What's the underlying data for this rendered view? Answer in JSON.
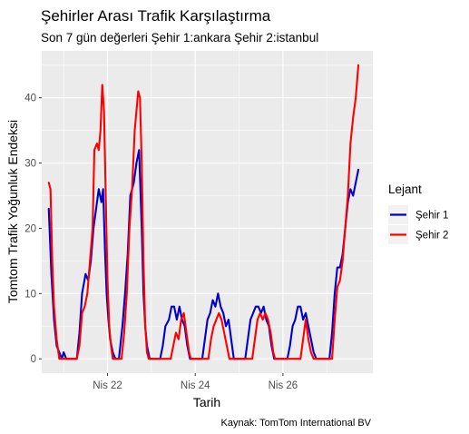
{
  "chart_data": {
    "type": "line",
    "title": "Şehirler Arası Trafik Karşılaştırma",
    "subtitle": "Son 7 gün değerleri Şehir 1:ankara Şehir 2:istanbul",
    "xlabel": "Tarih",
    "ylabel": "Tomtom Trafik Yoğunluk Endeksi",
    "caption": "Kaynak: TomTom International BV",
    "legend": {
      "title": "Lejant",
      "position": "right"
    },
    "xlim": [
      20.5,
      28.05
    ],
    "ylim": [
      -2.2,
      47.2
    ],
    "x_ticks": [
      {
        "value": 22,
        "label": "Nis 22"
      },
      {
        "value": 24,
        "label": "Nis 24"
      },
      {
        "value": 26,
        "label": "Nis 26"
      }
    ],
    "y_ticks": [
      0,
      10,
      20,
      30,
      40
    ],
    "grid": true,
    "series": [
      {
        "name": "Şehir 1",
        "color": "#0000CD",
        "points": [
          [
            20.66,
            23
          ],
          [
            20.72,
            13
          ],
          [
            20.78,
            6
          ],
          [
            20.84,
            2
          ],
          [
            20.9,
            1
          ],
          [
            20.96,
            0
          ],
          [
            21.0,
            1
          ],
          [
            21.06,
            0
          ],
          [
            21.3,
            0
          ],
          [
            21.36,
            4
          ],
          [
            21.42,
            10
          ],
          [
            21.5,
            13
          ],
          [
            21.56,
            12
          ],
          [
            21.62,
            15
          ],
          [
            21.68,
            20
          ],
          [
            21.74,
            23
          ],
          [
            21.8,
            26
          ],
          [
            21.86,
            24
          ],
          [
            21.9,
            26
          ],
          [
            21.94,
            17
          ],
          [
            21.98,
            10
          ],
          [
            22.02,
            6
          ],
          [
            22.06,
            3
          ],
          [
            22.12,
            1
          ],
          [
            22.18,
            0
          ],
          [
            22.26,
            0
          ],
          [
            22.34,
            5
          ],
          [
            22.4,
            10
          ],
          [
            22.46,
            16
          ],
          [
            22.52,
            25
          ],
          [
            22.6,
            27
          ],
          [
            22.66,
            30
          ],
          [
            22.72,
            32
          ],
          [
            22.78,
            20
          ],
          [
            22.82,
            10
          ],
          [
            22.86,
            5
          ],
          [
            22.9,
            2
          ],
          [
            22.96,
            0
          ],
          [
            23.2,
            0
          ],
          [
            23.26,
            2
          ],
          [
            23.32,
            5
          ],
          [
            23.4,
            6
          ],
          [
            23.46,
            8
          ],
          [
            23.52,
            8
          ],
          [
            23.58,
            6
          ],
          [
            23.64,
            8
          ],
          [
            23.7,
            6
          ],
          [
            23.76,
            5
          ],
          [
            23.82,
            2
          ],
          [
            23.88,
            0
          ],
          [
            24.16,
            0
          ],
          [
            24.22,
            3
          ],
          [
            24.28,
            6
          ],
          [
            24.34,
            7
          ],
          [
            24.4,
            9
          ],
          [
            24.46,
            8
          ],
          [
            24.52,
            10
          ],
          [
            24.58,
            8
          ],
          [
            24.64,
            7
          ],
          [
            24.7,
            5
          ],
          [
            24.76,
            6
          ],
          [
            24.82,
            3
          ],
          [
            24.88,
            0
          ],
          [
            25.14,
            0
          ],
          [
            25.2,
            3
          ],
          [
            25.26,
            6
          ],
          [
            25.32,
            7
          ],
          [
            25.38,
            8
          ],
          [
            25.44,
            8
          ],
          [
            25.5,
            7
          ],
          [
            25.56,
            8
          ],
          [
            25.62,
            6
          ],
          [
            25.68,
            5
          ],
          [
            25.74,
            2
          ],
          [
            25.8,
            0
          ],
          [
            26.1,
            0
          ],
          [
            26.16,
            2
          ],
          [
            26.22,
            5
          ],
          [
            26.28,
            6
          ],
          [
            26.34,
            8
          ],
          [
            26.4,
            8
          ],
          [
            26.46,
            6
          ],
          [
            26.52,
            7
          ],
          [
            26.58,
            5
          ],
          [
            26.64,
            3
          ],
          [
            26.7,
            1
          ],
          [
            26.76,
            0
          ],
          [
            27.06,
            0
          ],
          [
            27.12,
            4
          ],
          [
            27.18,
            10
          ],
          [
            27.24,
            14
          ],
          [
            27.3,
            14
          ],
          [
            27.36,
            16
          ],
          [
            27.42,
            20
          ],
          [
            27.48,
            24
          ],
          [
            27.54,
            26
          ],
          [
            27.6,
            25
          ],
          [
            27.66,
            27
          ],
          [
            27.72,
            29
          ]
        ]
      },
      {
        "name": "Şehir 2",
        "color": "#FF0000",
        "points": [
          [
            20.66,
            27
          ],
          [
            20.7,
            26
          ],
          [
            20.74,
            15
          ],
          [
            20.78,
            8
          ],
          [
            20.84,
            3
          ],
          [
            20.9,
            0
          ],
          [
            21.3,
            0
          ],
          [
            21.36,
            2
          ],
          [
            21.42,
            7
          ],
          [
            21.48,
            8
          ],
          [
            21.54,
            10
          ],
          [
            21.6,
            15
          ],
          [
            21.66,
            20
          ],
          [
            21.7,
            32
          ],
          [
            21.76,
            33
          ],
          [
            21.8,
            32
          ],
          [
            21.84,
            35
          ],
          [
            21.88,
            42
          ],
          [
            21.92,
            38
          ],
          [
            21.96,
            25
          ],
          [
            22.0,
            12
          ],
          [
            22.04,
            5
          ],
          [
            22.08,
            2
          ],
          [
            22.12,
            0
          ],
          [
            22.32,
            0
          ],
          [
            22.38,
            4
          ],
          [
            22.44,
            10
          ],
          [
            22.5,
            20
          ],
          [
            22.56,
            26
          ],
          [
            22.62,
            35
          ],
          [
            22.66,
            38
          ],
          [
            22.7,
            41
          ],
          [
            22.74,
            40
          ],
          [
            22.78,
            30
          ],
          [
            22.82,
            15
          ],
          [
            22.86,
            5
          ],
          [
            22.9,
            1
          ],
          [
            22.94,
            0
          ],
          [
            23.44,
            0
          ],
          [
            23.5,
            2
          ],
          [
            23.56,
            4
          ],
          [
            23.62,
            3
          ],
          [
            23.68,
            6
          ],
          [
            23.74,
            7
          ],
          [
            23.8,
            4
          ],
          [
            23.86,
            1
          ],
          [
            23.9,
            0
          ],
          [
            24.3,
            0
          ],
          [
            24.36,
            3
          ],
          [
            24.42,
            5
          ],
          [
            24.48,
            6
          ],
          [
            24.54,
            7
          ],
          [
            24.6,
            6
          ],
          [
            24.66,
            4
          ],
          [
            24.72,
            2
          ],
          [
            24.78,
            0
          ],
          [
            25.3,
            0
          ],
          [
            25.36,
            3
          ],
          [
            25.42,
            6
          ],
          [
            25.48,
            7
          ],
          [
            25.54,
            6
          ],
          [
            25.6,
            7
          ],
          [
            25.66,
            6
          ],
          [
            25.72,
            4
          ],
          [
            25.78,
            1
          ],
          [
            25.82,
            0
          ],
          [
            26.4,
            0
          ],
          [
            26.46,
            3
          ],
          [
            26.52,
            6
          ],
          [
            26.58,
            3
          ],
          [
            26.64,
            1
          ],
          [
            26.7,
            0
          ],
          [
            27.12,
            0
          ],
          [
            27.18,
            6
          ],
          [
            27.24,
            11
          ],
          [
            27.3,
            12
          ],
          [
            27.36,
            15
          ],
          [
            27.42,
            20
          ],
          [
            27.48,
            25
          ],
          [
            27.54,
            33
          ],
          [
            27.6,
            37
          ],
          [
            27.66,
            40
          ],
          [
            27.72,
            45
          ]
        ]
      }
    ]
  }
}
